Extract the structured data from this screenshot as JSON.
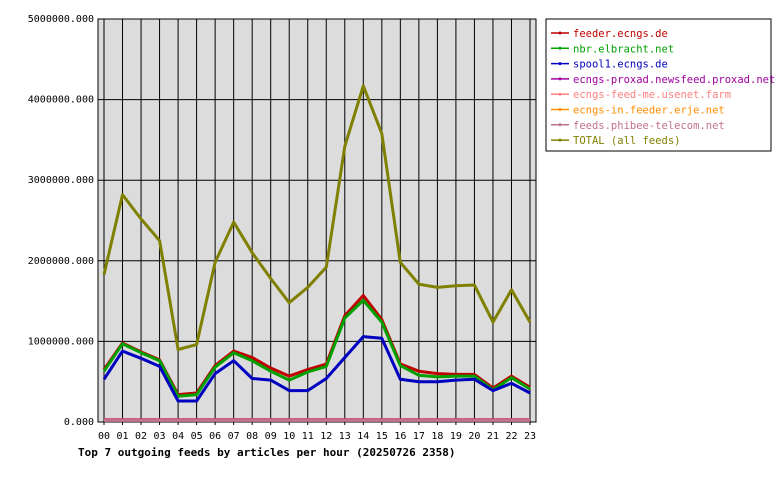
{
  "chart_data": {
    "type": "line",
    "title": "Top 7 outgoing feeds by articles per hour (20250726 2358)",
    "xlabel": "",
    "ylabel": "",
    "ylim": [
      0,
      5000000
    ],
    "y_ticks": [
      "0.000",
      "1000000.000",
      "2000000.000",
      "3000000.000",
      "4000000.000",
      "5000000.000"
    ],
    "y_tick_values": [
      0,
      1000000,
      2000000,
      3000000,
      4000000,
      5000000
    ],
    "categories": [
      "00",
      "01",
      "02",
      "03",
      "04",
      "05",
      "06",
      "07",
      "08",
      "09",
      "10",
      "11",
      "12",
      "13",
      "14",
      "15",
      "16",
      "17",
      "18",
      "19",
      "20",
      "21",
      "22",
      "23"
    ],
    "grid": true,
    "legend_position": "right",
    "plot_background": "#dcdcdc",
    "series": [
      {
        "name": "feeder.ecngs.de",
        "color": "#c00000",
        "values": [
          650000,
          980000,
          870000,
          770000,
          340000,
          360000,
          700000,
          880000,
          800000,
          670000,
          570000,
          650000,
          720000,
          1320000,
          1570000,
          1270000,
          720000,
          630000,
          600000,
          590000,
          590000,
          420000,
          570000,
          430000
        ]
      },
      {
        "name": "nbr.elbracht.net",
        "color": "#00a000",
        "values": [
          630000,
          970000,
          860000,
          760000,
          320000,
          340000,
          680000,
          860000,
          760000,
          630000,
          520000,
          620000,
          690000,
          1290000,
          1510000,
          1240000,
          700000,
          580000,
          560000,
          570000,
          570000,
          400000,
          550000,
          410000
        ]
      },
      {
        "name": "spool1.ecngs.de",
        "color": "#0000c0",
        "values": [
          530000,
          880000,
          790000,
          690000,
          260000,
          260000,
          600000,
          760000,
          540000,
          520000,
          390000,
          390000,
          540000,
          800000,
          1060000,
          1040000,
          530000,
          500000,
          500000,
          520000,
          530000,
          390000,
          480000,
          360000
        ]
      },
      {
        "name": "ecngs-proxad.newsfeed.proxad.net",
        "color": "#a000a0",
        "values": [
          30000,
          30000,
          30000,
          30000,
          30000,
          30000,
          30000,
          30000,
          30000,
          30000,
          30000,
          30000,
          30000,
          30000,
          30000,
          30000,
          30000,
          30000,
          30000,
          30000,
          30000,
          30000,
          30000,
          30000
        ]
      },
      {
        "name": "ecngs-feed-me.usenet.farm",
        "color": "#ff8080",
        "values": [
          25000,
          25000,
          25000,
          25000,
          25000,
          25000,
          25000,
          25000,
          25000,
          25000,
          25000,
          25000,
          25000,
          25000,
          25000,
          25000,
          25000,
          25000,
          25000,
          25000,
          25000,
          25000,
          25000,
          25000
        ]
      },
      {
        "name": "ecngs-in.feeder.erje.net",
        "color": "#ff8c00",
        "values": [
          22000,
          22000,
          22000,
          22000,
          22000,
          22000,
          22000,
          22000,
          22000,
          22000,
          22000,
          22000,
          22000,
          22000,
          22000,
          22000,
          22000,
          22000,
          22000,
          22000,
          22000,
          22000,
          22000,
          22000
        ]
      },
      {
        "name": "feeds.phibee-telecom.net",
        "color": "#c07090",
        "values": [
          20000,
          20000,
          20000,
          20000,
          20000,
          20000,
          20000,
          20000,
          20000,
          20000,
          20000,
          20000,
          20000,
          20000,
          20000,
          20000,
          20000,
          20000,
          20000,
          20000,
          20000,
          20000,
          20000,
          20000
        ]
      },
      {
        "name": "TOTAL (all feeds)",
        "color": "#808000",
        "values": [
          1830000,
          2820000,
          2520000,
          2250000,
          900000,
          960000,
          1980000,
          2480000,
          2100000,
          1780000,
          1480000,
          1670000,
          1920000,
          3420000,
          4170000,
          3580000,
          1980000,
          1710000,
          1670000,
          1690000,
          1700000,
          1240000,
          1640000,
          1240000
        ]
      }
    ]
  }
}
